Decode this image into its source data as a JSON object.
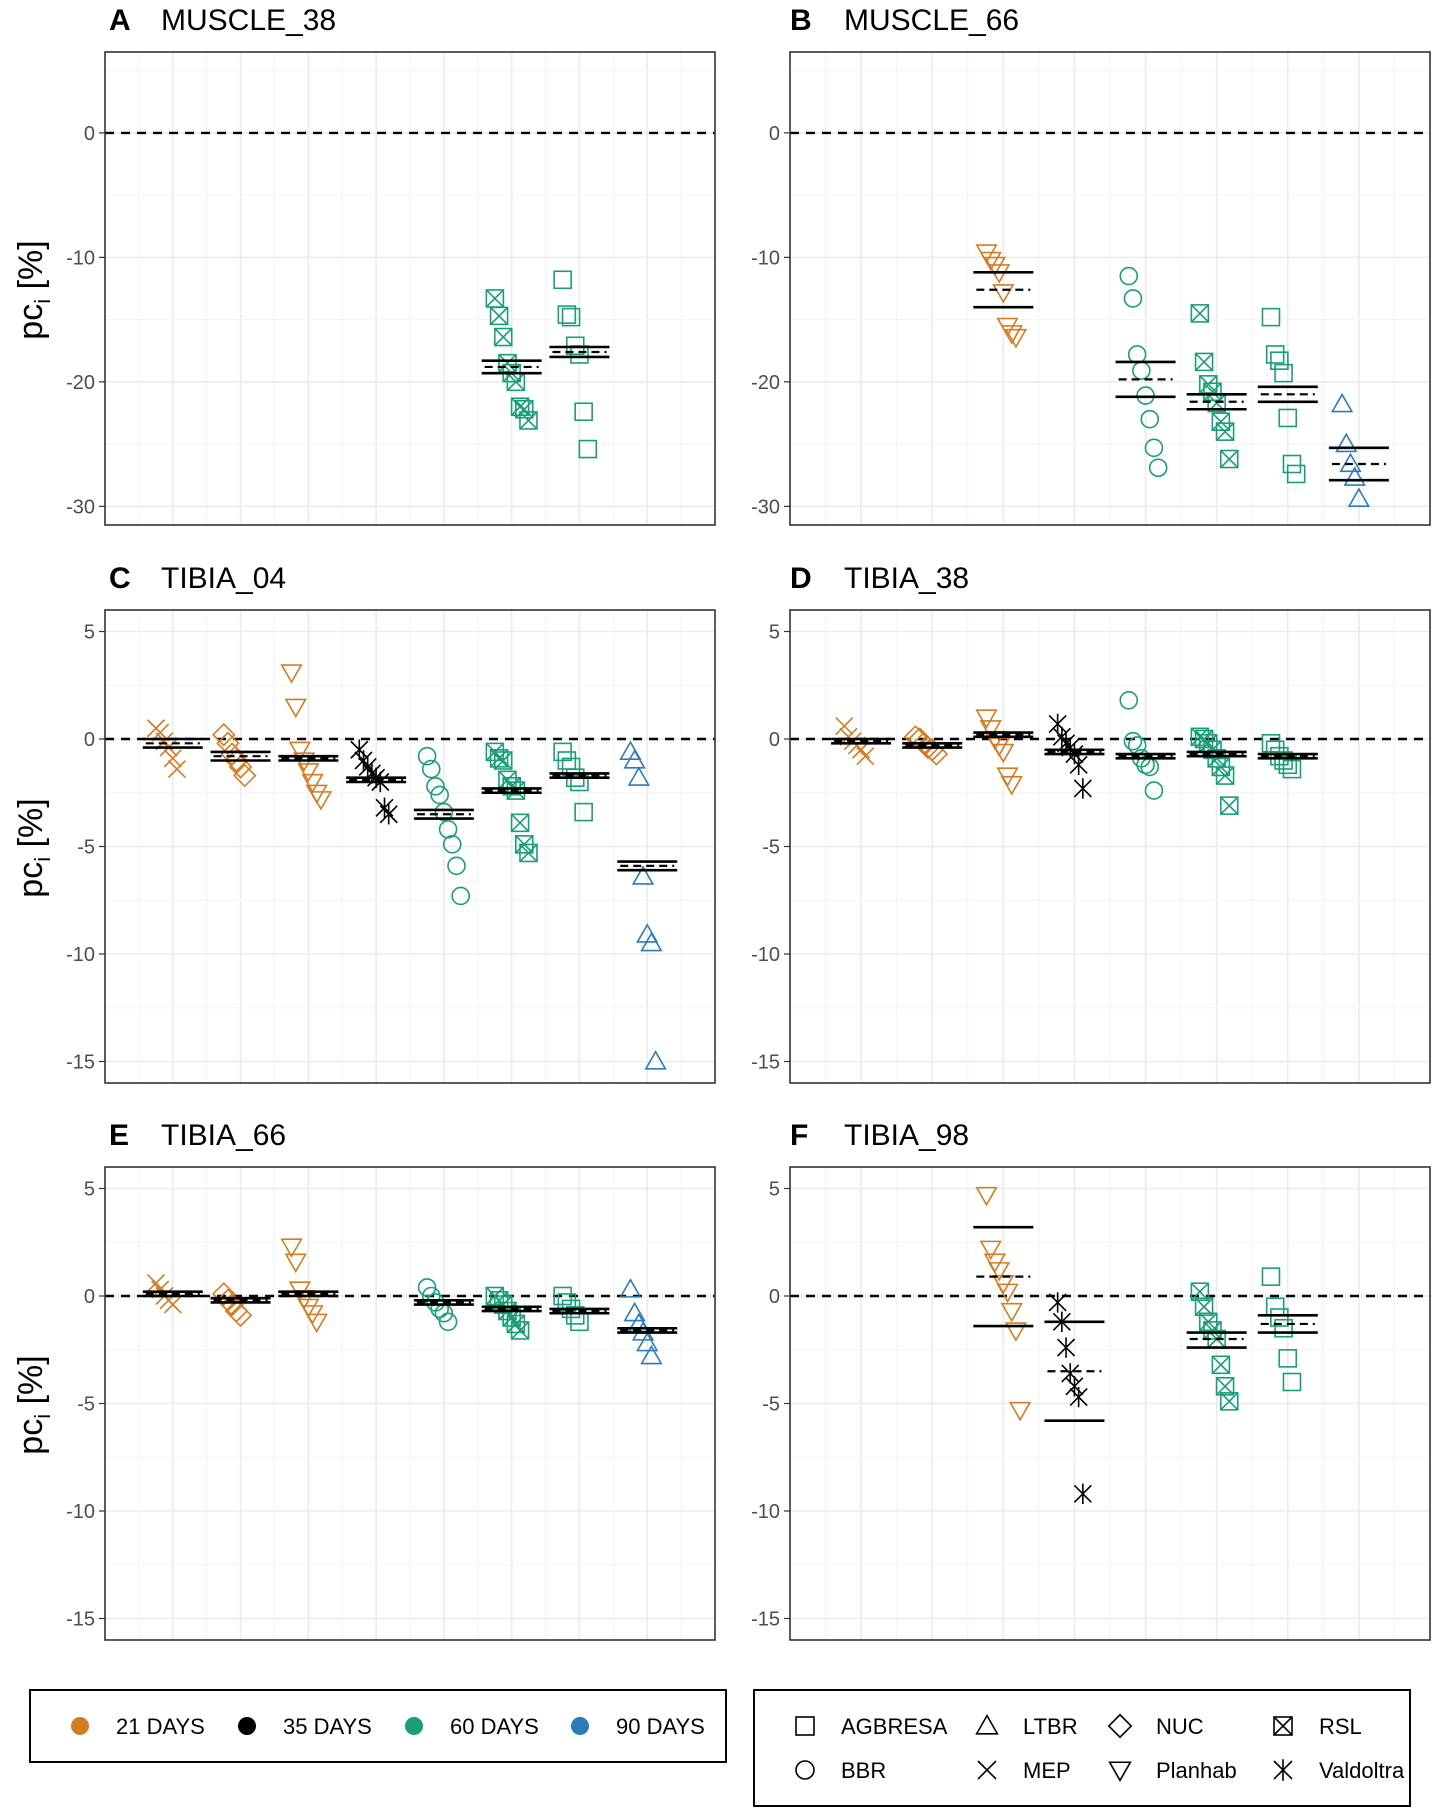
{
  "figure": {
    "ylabel_prefix": "pc",
    "ylabel_sub": "i",
    "ylabel_suffix": " [%]"
  },
  "colors": {
    "21 DAYS": "#d37c22",
    "35 DAYS": "#000000",
    "60 DAYS": "#1a9e77",
    "90 DAYS": "#2b7bb9",
    "grid": "#ebebeb",
    "axis_text": "#4d4d4d"
  },
  "legend_duration": {
    "items": [
      {
        "label": "21 DAYS",
        "color": "#d37c22"
      },
      {
        "label": "35 DAYS",
        "color": "#000000"
      },
      {
        "label": "60 DAYS",
        "color": "#1a9e77"
      },
      {
        "label": "90 DAYS",
        "color": "#2b7bb9"
      }
    ]
  },
  "legend_study": {
    "items": [
      {
        "label": "AGBRESA",
        "shape": "square"
      },
      {
        "label": "LTBR",
        "shape": "triangle"
      },
      {
        "label": "NUC",
        "shape": "diamond"
      },
      {
        "label": "RSL",
        "shape": "squarex"
      },
      {
        "label": "BBR",
        "shape": "circle"
      },
      {
        "label": "MEP",
        "shape": "x"
      },
      {
        "label": "Planhab",
        "shape": "tridown"
      },
      {
        "label": "Valdoltra",
        "shape": "asterisk"
      }
    ]
  },
  "chart_data": [
    {
      "type": "scatter",
      "letter": "A",
      "title": "MUSCLE_38",
      "ylim": [
        -31.5,
        6.5
      ],
      "yticks": [
        0,
        -10,
        -20,
        -30
      ],
      "groups": [
        {
          "study": "RSL",
          "duration": "60 DAYS",
          "mean": -18.8,
          "ci": [
            -18.3,
            -19.3
          ],
          "values": [
            -13.3,
            -14.7,
            -16.4,
            -18.5,
            -19.3,
            -20.0,
            -22.0,
            -22.2,
            -23.1
          ]
        },
        {
          "study": "AGBRESA",
          "duration": "60 DAYS",
          "mean": -17.6,
          "ci": [
            -17.2,
            -18.0
          ],
          "values": [
            -11.8,
            -14.6,
            -14.8,
            -17.1,
            -17.8,
            -22.4,
            -25.4
          ]
        }
      ]
    },
    {
      "type": "scatter",
      "letter": "B",
      "title": "MUSCLE_66",
      "ylim": [
        -31.5,
        6.5
      ],
      "yticks": [
        0,
        -10,
        -20,
        -30
      ],
      "groups": [
        {
          "study": "Planhab",
          "duration": "21 DAYS",
          "mean": -12.6,
          "ci": [
            -11.2,
            -14.0
          ],
          "values": [
            -9.6,
            -10.2,
            -10.6,
            -11.2,
            -12.8,
            -15.5,
            -16.1,
            -16.4
          ]
        },
        {
          "study": "BBR",
          "duration": "60 DAYS",
          "mean": -19.8,
          "ci": [
            -18.4,
            -21.2
          ],
          "values": [
            -11.5,
            -13.3,
            -17.8,
            -19.1,
            -21.1,
            -23.0,
            -25.3,
            -26.9
          ]
        },
        {
          "study": "RSL",
          "duration": "60 DAYS",
          "mean": -21.6,
          "ci": [
            -21.0,
            -22.2
          ],
          "values": [
            -14.5,
            -18.4,
            -20.2,
            -20.8,
            -21.7,
            -23.2,
            -24.0,
            -26.2
          ]
        },
        {
          "study": "AGBRESA",
          "duration": "60 DAYS",
          "mean": -21.0,
          "ci": [
            -20.4,
            -21.6
          ],
          "values": [
            -14.8,
            -17.8,
            -18.3,
            -19.3,
            -22.9,
            -26.6,
            -27.4
          ]
        },
        {
          "study": "LTBR",
          "duration": "90 DAYS",
          "mean": -26.6,
          "ci": [
            -25.3,
            -27.9
          ],
          "values": [
            -21.8,
            -25.0,
            -26.6,
            -27.7,
            -29.4
          ]
        }
      ]
    },
    {
      "type": "scatter",
      "letter": "C",
      "title": "TIBIA_04",
      "ylim": [
        -16.0,
        6.0
      ],
      "yticks": [
        5,
        0,
        -5,
        -10,
        -15
      ],
      "groups": [
        {
          "study": "MEP",
          "duration": "21 DAYS",
          "mean": -0.2,
          "ci": [
            0.0,
            -0.4
          ],
          "values": [
            0.5,
            0.3,
            -0.1,
            -0.4,
            -0.9,
            -1.4
          ]
        },
        {
          "study": "NUC",
          "duration": "21 DAYS",
          "mean": -0.8,
          "ci": [
            -0.6,
            -1.0
          ],
          "values": [
            0.2,
            -0.2,
            -0.7,
            -1.0,
            -1.3,
            -1.7
          ]
        },
        {
          "study": "Planhab",
          "duration": "21 DAYS",
          "mean": -0.9,
          "ci": [
            -0.8,
            -1.0
          ],
          "values": [
            3.1,
            1.5,
            -0.5,
            -1.0,
            -1.5,
            -2.0,
            -2.5,
            -2.8
          ]
        },
        {
          "study": "Valdoltra",
          "duration": "35 DAYS",
          "mean": -1.9,
          "ci": [
            -1.8,
            -2.0
          ],
          "values": [
            -0.5,
            -1.0,
            -1.3,
            -1.6,
            -1.8,
            -2.0,
            -3.2,
            -3.5
          ]
        },
        {
          "study": "BBR",
          "duration": "60 DAYS",
          "mean": -3.5,
          "ci": [
            -3.3,
            -3.7
          ],
          "values": [
            -0.8,
            -1.4,
            -2.2,
            -2.6,
            -3.4,
            -4.2,
            -4.9,
            -5.9,
            -7.3
          ]
        },
        {
          "study": "RSL",
          "duration": "60 DAYS",
          "mean": -2.4,
          "ci": [
            -2.3,
            -2.5
          ],
          "values": [
            -0.6,
            -0.9,
            -1.0,
            -1.9,
            -2.2,
            -2.4,
            -3.9,
            -4.9,
            -5.3
          ]
        },
        {
          "study": "AGBRESA",
          "duration": "60 DAYS",
          "mean": -1.7,
          "ci": [
            -1.6,
            -1.8
          ],
          "values": [
            -0.6,
            -1.0,
            -1.3,
            -1.8,
            -2.0,
            -3.4
          ]
        },
        {
          "study": "LTBR",
          "duration": "90 DAYS",
          "mean": -5.9,
          "ci": [
            -5.7,
            -6.1
          ],
          "values": [
            -0.6,
            -1.0,
            -1.8,
            -6.4,
            -9.1,
            -9.5,
            -15.0
          ]
        }
      ]
    },
    {
      "type": "scatter",
      "letter": "D",
      "title": "TIBIA_38",
      "ylim": [
        -16.0,
        6.0
      ],
      "yticks": [
        5,
        0,
        -5,
        -10,
        -15
      ],
      "groups": [
        {
          "study": "MEP",
          "duration": "21 DAYS",
          "mean": -0.1,
          "ci": [
            0.0,
            -0.2
          ],
          "values": [
            0.6,
            0.1,
            -0.1,
            -0.3,
            -0.5,
            -0.8
          ]
        },
        {
          "study": "NUC",
          "duration": "21 DAYS",
          "mean": -0.3,
          "ci": [
            -0.2,
            -0.4
          ],
          "values": [
            0.1,
            0.0,
            -0.2,
            -0.4,
            -0.5,
            -0.7
          ]
        },
        {
          "study": "Planhab",
          "duration": "21 DAYS",
          "mean": 0.2,
          "ci": [
            0.3,
            0.1
          ],
          "values": [
            1.0,
            0.5,
            0.0,
            -0.3,
            -0.6,
            -1.7,
            -2.1
          ]
        },
        {
          "study": "Valdoltra",
          "duration": "35 DAYS",
          "mean": -0.6,
          "ci": [
            -0.5,
            -0.7
          ],
          "values": [
            0.7,
            0.1,
            -0.2,
            -0.4,
            -0.7,
            -1.2,
            -2.3
          ]
        },
        {
          "study": "BBR",
          "duration": "60 DAYS",
          "mean": -0.8,
          "ci": [
            -0.7,
            -0.9
          ],
          "values": [
            1.8,
            -0.1,
            -0.3,
            -0.9,
            -1.2,
            -1.3,
            -2.4
          ]
        },
        {
          "study": "RSL",
          "duration": "60 DAYS",
          "mean": -0.7,
          "ci": [
            -0.6,
            -0.8
          ],
          "values": [
            0.1,
            0.0,
            -0.2,
            -0.5,
            -0.9,
            -1.3,
            -1.7,
            -3.1
          ]
        },
        {
          "study": "AGBRESA",
          "duration": "60 DAYS",
          "mean": -0.8,
          "ci": [
            -0.7,
            -0.9
          ],
          "values": [
            -0.2,
            -0.5,
            -0.8,
            -1.0,
            -1.2,
            -1.4
          ]
        }
      ]
    },
    {
      "type": "scatter",
      "letter": "E",
      "title": "TIBIA_66",
      "ylim": [
        -16.0,
        6.0
      ],
      "yticks": [
        5,
        0,
        -5,
        -10,
        -15
      ],
      "groups": [
        {
          "study": "MEP",
          "duration": "21 DAYS",
          "mean": 0.1,
          "ci": [
            0.2,
            0.0
          ],
          "values": [
            0.6,
            0.3,
            0.0,
            -0.2,
            -0.4
          ]
        },
        {
          "study": "NUC",
          "duration": "21 DAYS",
          "mean": -0.2,
          "ci": [
            -0.1,
            -0.3
          ],
          "values": [
            0.1,
            -0.2,
            -0.4,
            -0.7,
            -0.9
          ]
        },
        {
          "study": "Planhab",
          "duration": "21 DAYS",
          "mean": 0.1,
          "ci": [
            0.2,
            0.0
          ],
          "values": [
            2.3,
            1.6,
            0.3,
            -0.1,
            -0.5,
            -0.8,
            -1.2
          ]
        },
        {
          "study": "BBR",
          "duration": "60 DAYS",
          "mean": -0.3,
          "ci": [
            -0.2,
            -0.4
          ],
          "values": [
            0.4,
            0.0,
            -0.3,
            -0.6,
            -0.8,
            -1.2
          ]
        },
        {
          "study": "RSL",
          "duration": "60 DAYS",
          "mean": -0.6,
          "ci": [
            -0.5,
            -0.7
          ],
          "values": [
            0.0,
            -0.2,
            -0.4,
            -0.7,
            -1.0,
            -1.3,
            -1.6
          ]
        },
        {
          "study": "AGBRESA",
          "duration": "60 DAYS",
          "mean": -0.7,
          "ci": [
            -0.6,
            -0.8
          ],
          "values": [
            0.0,
            -0.3,
            -0.6,
            -0.9,
            -1.2
          ]
        },
        {
          "study": "LTBR",
          "duration": "90 DAYS",
          "mean": -1.6,
          "ci": [
            -1.5,
            -1.7
          ],
          "values": [
            0.3,
            -0.8,
            -1.3,
            -1.7,
            -2.2,
            -2.8
          ]
        }
      ]
    },
    {
      "type": "scatter",
      "letter": "F",
      "title": "TIBIA_98",
      "ylim": [
        -16.0,
        6.0
      ],
      "yticks": [
        5,
        0,
        -5,
        -10,
        -15
      ],
      "groups": [
        {
          "study": "Planhab",
          "duration": "21 DAYS",
          "mean": 0.9,
          "ci": [
            3.2,
            -1.4
          ],
          "values": [
            4.7,
            2.2,
            1.6,
            1.2,
            0.6,
            0.2,
            -0.7,
            -1.6,
            -5.3
          ]
        },
        {
          "study": "Valdoltra",
          "duration": "35 DAYS",
          "mean": -3.5,
          "ci": [
            -1.2,
            -5.8
          ],
          "values": [
            -0.3,
            -1.2,
            -2.4,
            -3.6,
            -4.2,
            -4.7,
            -9.2
          ]
        },
        {
          "study": "RSL",
          "duration": "60 DAYS",
          "mean": -2.0,
          "ci": [
            -1.7,
            -2.4
          ],
          "values": [
            0.2,
            -0.5,
            -1.2,
            -1.6,
            -2.0,
            -3.2,
            -4.2,
            -4.9
          ]
        },
        {
          "study": "AGBRESA",
          "duration": "60 DAYS",
          "mean": -1.3,
          "ci": [
            -0.9,
            -1.7
          ],
          "values": [
            0.9,
            -0.5,
            -1.0,
            -1.5,
            -2.9,
            -4.0
          ]
        }
      ]
    }
  ]
}
